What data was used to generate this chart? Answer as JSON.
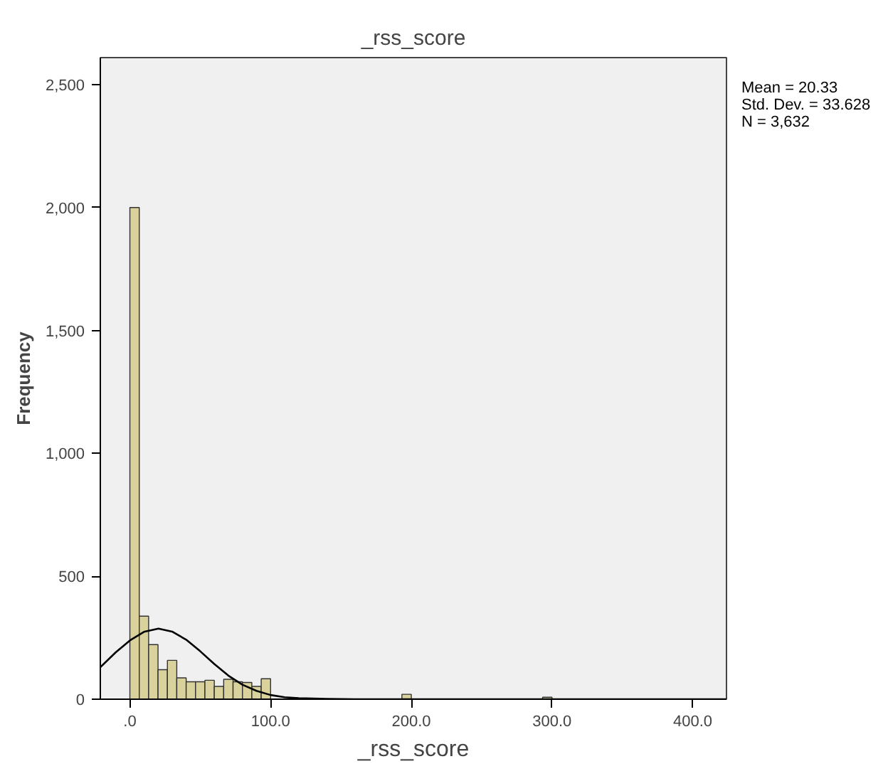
{
  "chart_data": {
    "type": "histogram",
    "title": "_rss_score",
    "xlabel": "_rss_score",
    "ylabel": "Frequency",
    "bins": [
      0,
      6.67,
      13.33,
      20,
      26.67,
      33.33,
      40,
      46.67,
      53.33,
      60,
      66.67,
      73.33,
      80,
      86.67,
      93.33,
      100,
      106.67,
      113.33,
      120,
      126.67,
      133.33,
      140,
      146.67,
      153.33,
      160,
      166.67,
      173.33,
      180,
      186.67,
      193.33,
      200,
      206.67,
      213.33,
      220,
      226.67,
      233.33,
      240,
      246.67,
      253.33,
      260,
      266.67,
      273.33,
      280,
      286.67,
      293.33,
      300
    ],
    "values": [
      2000,
      338,
      222,
      120,
      158,
      87,
      71,
      71,
      77,
      52,
      81,
      71,
      68,
      52,
      83,
      null,
      null,
      2,
      1,
      1,
      1,
      0,
      1,
      0,
      0,
      0,
      0,
      0,
      0,
      20,
      0,
      0,
      0,
      0,
      0,
      0,
      0,
      0,
      0,
      0,
      0,
      0,
      0,
      0,
      8
    ],
    "color": "#d9d29c",
    "series": [
      {
        "type": "line",
        "color": "#000000",
        "x": [
          -21,
          -10,
          0,
          10,
          20.33,
          30,
          40,
          50,
          60,
          70,
          80,
          90,
          100,
          110,
          120,
          140,
          160,
          424
        ],
        "values": [
          130,
          191,
          239,
          274,
          287,
          275,
          242,
          195,
          143,
          96,
          59,
          34,
          17,
          8,
          4,
          1,
          0,
          0
        ]
      }
    ],
    "xlim": [
      -21,
      424
    ],
    "ylim": [
      0,
      2610
    ],
    "xticks": [
      {
        "value": 0,
        "label": ".0"
      },
      {
        "value": 100,
        "label": "100.0"
      },
      {
        "value": 200,
        "label": "200.0"
      },
      {
        "value": 300,
        "label": "300.0"
      },
      {
        "value": 400,
        "label": "400.0"
      }
    ],
    "yticks": [
      0,
      500,
      {
        "value": 1000,
        "label": "1,000"
      },
      {
        "value": 1500,
        "label": "1,500"
      },
      {
        "value": 2000,
        "label": "2,000"
      },
      {
        "value": 2500,
        "label": "2,500"
      }
    ],
    "grid": false,
    "annotations": [
      "Mean = 20.33",
      "Std. Dev. = 33.628",
      "N = 3,632"
    ]
  }
}
